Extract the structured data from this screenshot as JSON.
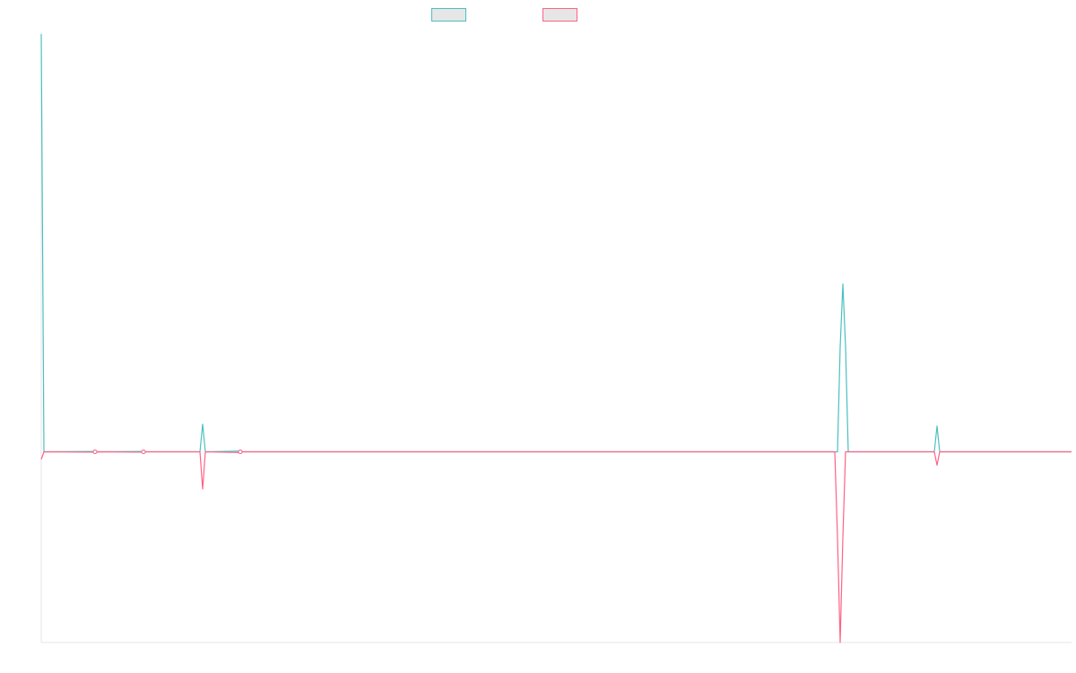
{
  "chart_data": {
    "type": "line",
    "title": "",
    "xlabel": "",
    "ylabel": "",
    "grid": false,
    "legend_position": "top-center",
    "ylim": [
      -1,
      2.2
    ],
    "x": [
      0,
      1,
      2,
      3,
      4,
      5,
      6,
      7,
      8,
      9,
      10,
      11,
      12,
      13,
      14,
      15,
      16,
      17,
      18,
      19,
      20,
      21,
      22,
      23,
      24,
      25,
      26,
      27,
      28,
      29,
      30,
      31,
      32,
      33,
      34,
      35,
      36,
      37,
      38,
      39,
      40,
      41,
      42,
      43,
      44,
      45,
      46,
      47,
      48,
      49,
      50,
      51,
      52,
      53,
      54,
      55,
      56,
      57,
      58,
      59,
      60,
      61,
      62,
      63,
      64,
      65,
      66,
      67,
      68,
      69,
      70,
      71,
      72,
      73,
      74,
      75,
      76,
      77,
      78,
      79,
      80,
      81,
      82,
      83,
      84,
      85,
      86,
      87,
      88,
      89,
      90,
      91,
      92,
      93,
      94,
      95,
      96,
      97,
      98,
      99,
      100,
      101,
      102,
      103,
      104,
      105,
      106,
      107,
      108,
      109,
      110,
      111,
      112,
      113,
      114,
      115,
      116,
      117,
      118,
      119,
      120,
      121,
      122,
      123,
      124,
      125,
      126,
      127,
      128,
      129,
      130,
      131,
      132,
      133,
      134,
      135,
      136,
      137,
      138,
      139,
      140,
      141,
      142,
      143,
      144,
      145,
      146,
      147,
      148,
      149,
      150,
      151,
      152,
      153,
      154,
      155,
      156,
      157,
      158,
      159,
      160,
      161,
      162,
      163,
      164,
      165,
      166,
      167,
      168,
      169,
      170,
      171,
      172,
      173,
      174,
      175,
      176,
      177,
      178,
      179,
      180,
      181,
      182,
      183,
      184,
      185,
      186,
      187,
      188,
      189,
      190,
      191,
      192,
      193,
      194,
      195,
      196,
      197,
      198,
      199,
      200,
      201,
      202,
      203,
      204,
      205,
      206,
      207,
      208,
      209,
      210,
      211,
      212,
      213,
      214,
      215,
      216,
      217,
      218,
      219,
      220,
      221,
      222,
      223,
      224,
      225,
      226,
      227,
      228,
      229,
      230,
      231,
      232,
      233,
      234,
      235,
      236,
      237,
      238,
      239,
      240,
      241,
      242,
      243,
      244,
      245,
      246,
      247,
      248,
      249,
      250,
      251,
      252,
      253,
      254,
      255,
      256,
      257,
      258,
      259,
      260,
      261,
      262,
      263,
      264,
      265,
      266,
      267,
      268,
      269,
      270,
      271,
      272,
      273,
      274,
      275,
      276,
      277,
      278,
      279,
      280,
      281,
      282,
      283,
      284,
      285,
      286,
      287,
      288,
      289,
      290,
      291,
      292,
      293,
      294,
      295,
      296,
      297,
      298,
      299,
      300,
      301,
      302,
      303,
      304,
      305,
      306,
      307,
      308,
      309,
      310,
      311,
      312,
      313,
      314,
      315,
      316,
      317,
      318,
      319,
      320,
      321,
      322,
      323,
      324,
      325,
      326,
      327,
      328,
      329,
      330,
      331,
      332,
      333,
      334,
      335,
      336,
      337,
      338,
      339,
      340,
      341,
      342,
      343,
      344,
      345,
      346,
      347,
      348,
      349,
      350,
      351,
      352,
      353,
      354,
      355,
      356,
      357,
      358,
      359,
      360,
      361,
      362,
      363,
      364,
      365,
      366,
      367,
      368,
      369,
      370,
      371,
      372,
      373,
      374,
      375,
      376,
      377,
      378,
      379,
      380,
      381,
      382,
      383
    ],
    "series": [
      {
        "name": "",
        "color": "#4bc0c0",
        "points": [
          [
            0,
            2.19
          ],
          [
            1,
            0
          ],
          [
            20,
            0.002
          ],
          [
            21,
            0
          ],
          [
            38,
            0.002
          ],
          [
            39,
            0
          ],
          [
            59,
            0
          ],
          [
            60,
            0.145
          ],
          [
            61,
            0
          ],
          [
            74,
            0.004
          ],
          [
            75,
            0
          ],
          [
            296,
            0
          ],
          [
            297,
            0.55
          ],
          [
            298,
            0.88
          ],
          [
            299,
            0.55
          ],
          [
            300,
            0
          ],
          [
            332,
            0
          ],
          [
            333,
            0.135
          ],
          [
            334,
            0
          ],
          [
            383,
            0
          ]
        ]
      },
      {
        "name": "",
        "color": "#ff6384",
        "points": [
          [
            0,
            -0.04
          ],
          [
            1,
            0
          ],
          [
            20,
            -0.002
          ],
          [
            21,
            0
          ],
          [
            38,
            -0.002
          ],
          [
            39,
            0
          ],
          [
            59,
            0
          ],
          [
            60,
            -0.195
          ],
          [
            61,
            0
          ],
          [
            74,
            -0.004
          ],
          [
            75,
            0
          ],
          [
            295,
            0
          ],
          [
            296,
            -0.45
          ],
          [
            297,
            -1.0
          ],
          [
            298,
            -0.45
          ],
          [
            299,
            0
          ],
          [
            332,
            0
          ],
          [
            333,
            -0.07
          ],
          [
            334,
            0
          ],
          [
            383,
            0
          ]
        ]
      }
    ]
  }
}
